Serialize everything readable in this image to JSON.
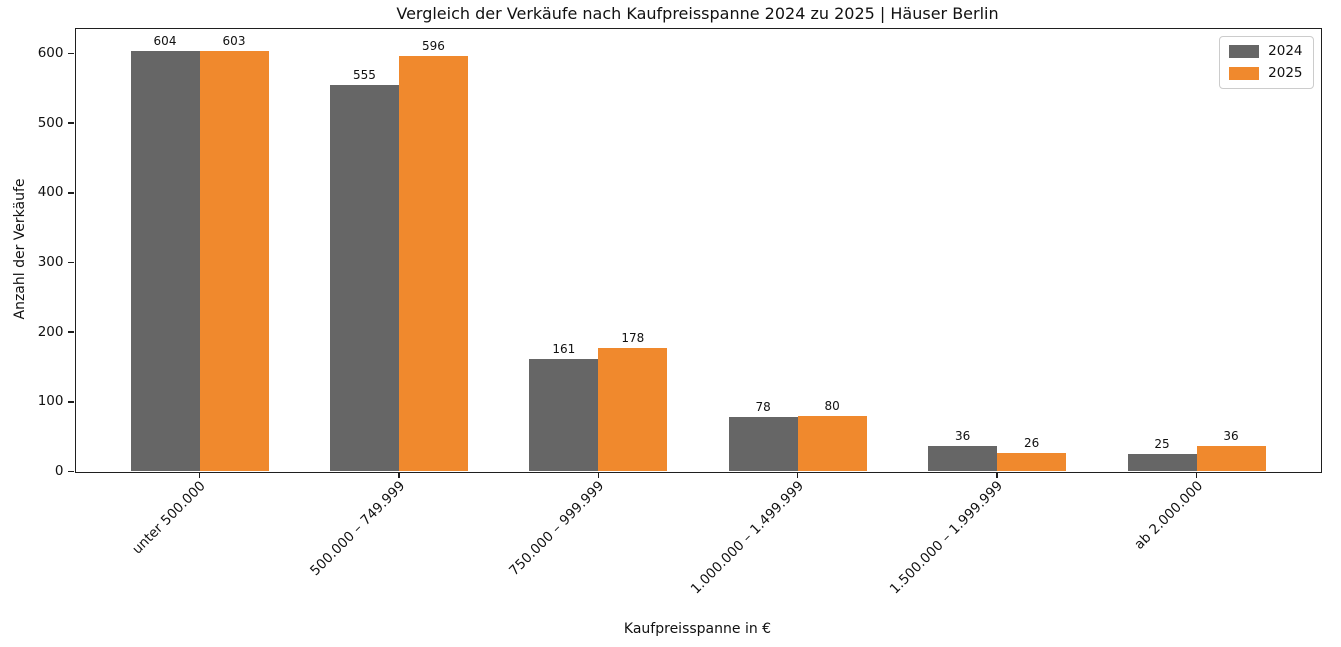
{
  "chart_data": {
    "type": "bar",
    "title": "Vergleich der Verkäufe nach Kaufpreisspanne 2024 zu 2025 | Häuser Berlin",
    "xlabel": "Kaufpreisspanne in €",
    "ylabel": "Anzahl der Verkäufe",
    "categories": [
      "unter 500.000",
      "500.000 – 749.999",
      "750.000 – 999.999",
      "1.000.000 – 1.499.999",
      "1.500.000 – 1.999.999",
      "ab 2.000.000"
    ],
    "series": [
      {
        "name": "2024",
        "color": "#666666",
        "values": [
          604,
          555,
          161,
          78,
          36,
          25
        ]
      },
      {
        "name": "2025",
        "color": "#F0892D",
        "values": [
          603,
          596,
          178,
          80,
          26,
          36
        ]
      }
    ],
    "bar_value_labels": true,
    "yticks": [
      0,
      100,
      200,
      300,
      400,
      500,
      600
    ],
    "ylim": [
      0,
      636
    ],
    "grid": false,
    "legend_position": "upper right",
    "background_color": "#ffffff",
    "axis_color": "#1f1f1f"
  }
}
